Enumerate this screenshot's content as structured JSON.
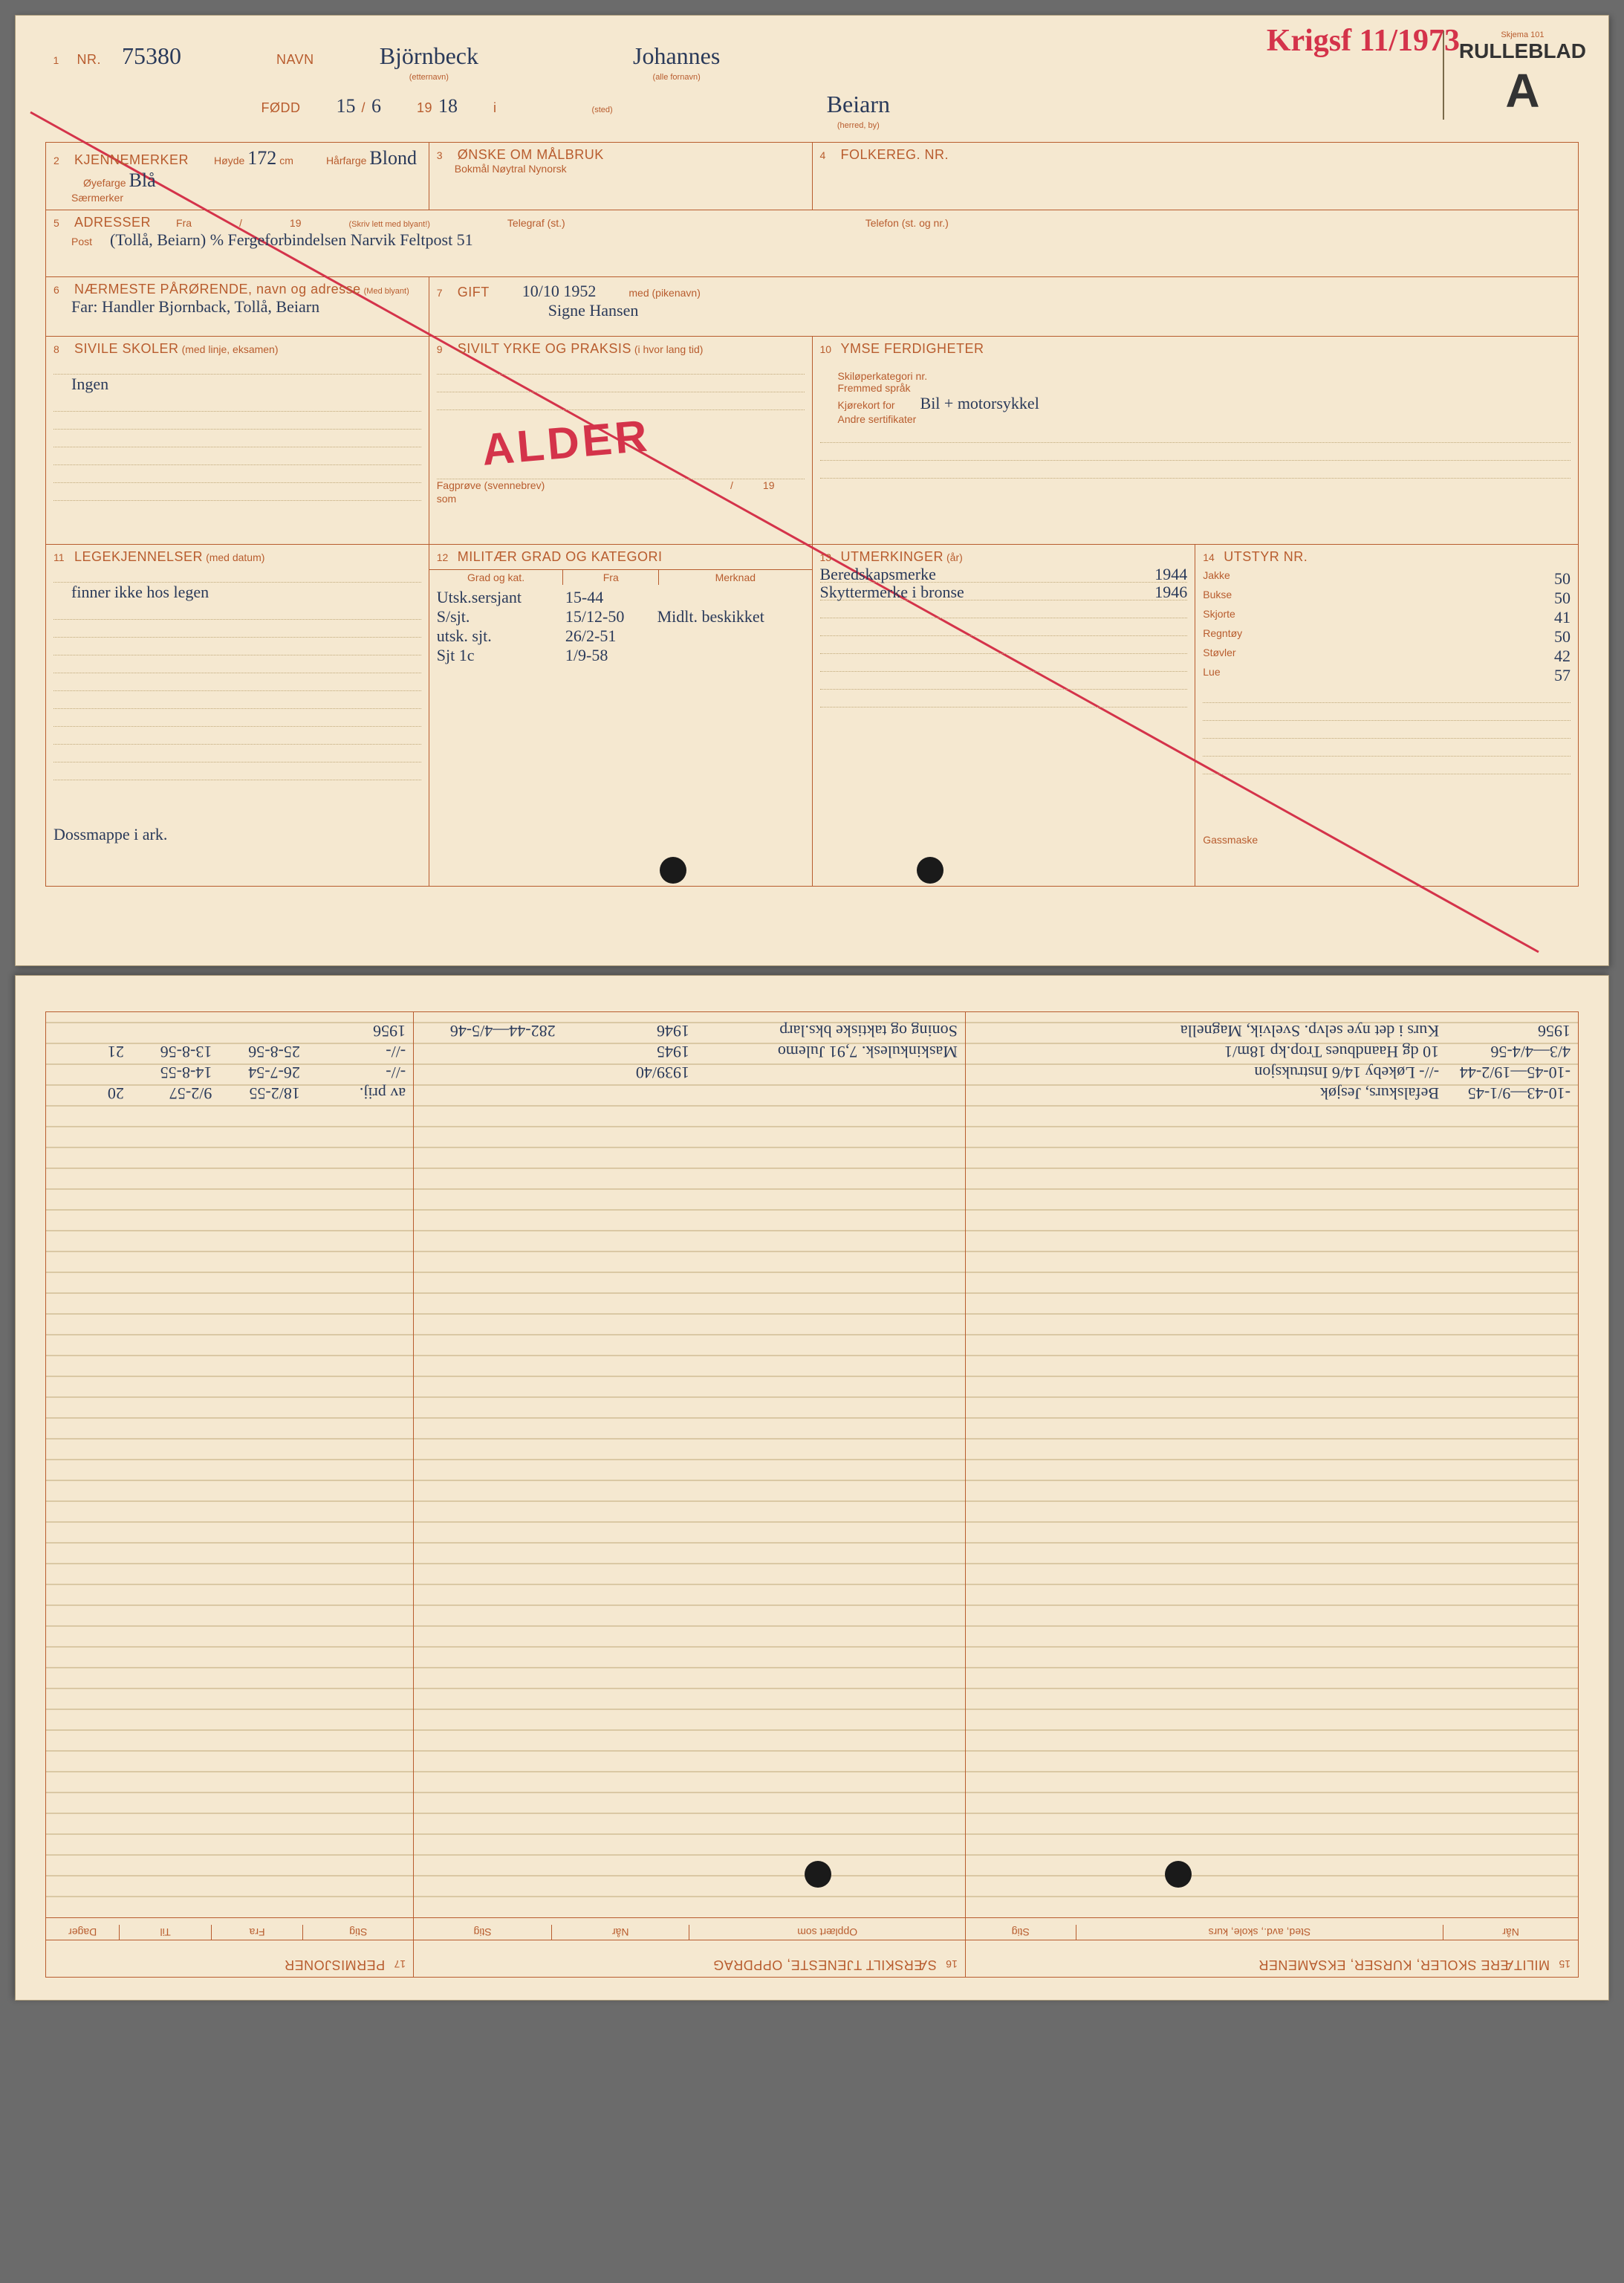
{
  "colors": {
    "paper": "#f5e8d0",
    "ink_printed": "#b85c2e",
    "ink_hand": "#2a3a5a",
    "ink_red": "#d4334a",
    "border": "#b85c2e",
    "background": "#6b6b6b"
  },
  "header": {
    "skjema": "Skjema 101",
    "rulleblad": "RULLEBLAD",
    "letter": "A",
    "red_stamp": "Krigsf 11/1973"
  },
  "section1": {
    "num": "1",
    "nr_label": "NR.",
    "nr_value": "75380",
    "navn_label": "NAVN",
    "etternavn": "Björnbeck",
    "etternavn_sub": "(etternavn)",
    "fornavn": "Johannes",
    "fornavn_sub": "(alle fornavn)",
    "fodd_label": "FØDD",
    "fodd_day": "15",
    "fodd_month": "6",
    "fodd_year_prefix": "19",
    "fodd_year": "18",
    "i_label": "i",
    "sted_sub": "(sted)",
    "herred": "Beiarn",
    "herred_sub": "(herred, by)"
  },
  "section2": {
    "num": "2",
    "label": "KJENNEMERKER",
    "hoyde_label": "Høyde",
    "hoyde_value": "172",
    "cm": "cm",
    "harfarge_label": "Hårfarge",
    "harfarge_value": "Blond",
    "oyefarge_label": "Øyefarge",
    "oyefarge_value": "Blå",
    "saermerker": "Særmerker"
  },
  "section3": {
    "num": "3",
    "label": "ØNSKE OM MÅLBRUK",
    "options": "Bokmål   Nøytral   Nynorsk"
  },
  "section4": {
    "num": "4",
    "label": "FOLKEREG. NR."
  },
  "section5": {
    "num": "5",
    "label": "ADRESSER",
    "fra": "Fra",
    "slash": "/",
    "year_prefix": "19",
    "skriv": "(Skriv lett med blyant!)",
    "telegraf": "Telegraf (st.)",
    "telefon": "Telefon (st. og nr.)",
    "post": "Post",
    "value": "(Tollå, Beiarn) % Fergeforbindelsen Narvik    Feltpost 51"
  },
  "section6": {
    "num": "6",
    "label": "NÆRMESTE PÅRØRENDE, navn og adresse",
    "med_blyant": "(Med blyant)",
    "value": "Far: Handler Bjornback, Tollå, Beiarn"
  },
  "section7": {
    "num": "7",
    "label": "GIFT",
    "date": "10/10   1952",
    "med": "med (pikenavn)",
    "value": "Signe Hansen"
  },
  "section8": {
    "num": "8",
    "label": "SIVILE SKOLER",
    "sub": "(med linje, eksamen)",
    "value": "Ingen"
  },
  "section9": {
    "num": "9",
    "label": "SIVILT YRKE OG PRAKSIS",
    "sub": "(i hvor lang tid)",
    "fagprove": "Fagprøve (svennebrev)",
    "som": "som",
    "year_prefix": "19",
    "stamp": "ALDER"
  },
  "section10": {
    "num": "10",
    "label": "YMSE FERDIGHETER",
    "ski": "Skiløperkategori nr.",
    "fremmed": "Fremmed språk",
    "kjorekort": "Kjørekort for",
    "kjorekort_value": "Bil + motorsykkel",
    "andre": "Andre sertifikater"
  },
  "section11": {
    "num": "11",
    "label": "LEGEKJENNELSER",
    "sub": "(med datum)",
    "value": "finner ikke hos legen",
    "bottom_note": "Dossmappe i ark."
  },
  "section12": {
    "num": "12",
    "label": "MILITÆR GRAD OG KATEGORI",
    "headers": [
      "Grad og kat.",
      "Fra",
      "Merknad"
    ],
    "rows": [
      [
        "Utsk.sersjant",
        "15-44",
        ""
      ],
      [
        "S/sjt.",
        "15/12-50",
        "Midlt. beskikket"
      ],
      [
        "utsk. sjt.",
        "26/2-51",
        ""
      ],
      [
        "Sjt 1c",
        "1/9-58",
        ""
      ]
    ]
  },
  "section13": {
    "num": "13",
    "label": "UTMERKINGER",
    "sub": "(år)",
    "rows": [
      [
        "Beredskapsmerke",
        "1944"
      ],
      [
        "Skyttermerke i bronse",
        "1946"
      ]
    ]
  },
  "section14": {
    "num": "14",
    "label": "UTSTYR NR.",
    "rows": [
      [
        "Jakke",
        "50"
      ],
      [
        "Bukse",
        "50"
      ],
      [
        "Skjorte",
        "41"
      ],
      [
        "Regntøy",
        "50"
      ],
      [
        "Støvler",
        "42"
      ],
      [
        "Lue",
        "57"
      ]
    ],
    "gassmaske": "Gassmaske"
  },
  "bottom_card": {
    "section15": {
      "num": "15",
      "label": "MILITÆRE SKOLER, KURSER, EKSAMENER",
      "headers": [
        "Når",
        "Sted, avd., skole, kurs",
        "Stig"
      ],
      "rows": [
        [
          "-10-43—9/1-45",
          "Befalskurs, Jesjøk",
          ""
        ],
        [
          "-10-45—19/2-44",
          "  -//-  Løkeby 14/6 Instruksjon",
          ""
        ],
        [
          "4/3—4/4-56",
          "10 dg Haandbues Trop.kp 18m/1",
          ""
        ],
        [
          "1956",
          "Kurs i det nye selvp. Svelvik, Magnella",
          ""
        ]
      ]
    },
    "section16": {
      "num": "16",
      "label": "SÆRSKILT TJENESTE, OPPDRAG",
      "headers": [
        "Opplært som",
        "Når",
        "Stig"
      ],
      "rows": [
        [
          "",
          "1939/40",
          ""
        ],
        [
          "Maskinkulesk. 7,91 Julemo",
          "1945",
          ""
        ],
        [
          "Soning og taktiske bks.larp",
          "1946",
          "282-44—4/5-46"
        ]
      ]
    },
    "section17": {
      "num": "17",
      "label": "PERMISJONER",
      "headers": [
        "Stig",
        "Fra",
        "Til",
        "Dager"
      ],
      "rows": [
        [
          "av prij.",
          "18/2-55",
          "9/2-57",
          "20"
        ],
        [
          "  -//-  ",
          "26-7-54",
          "14-8-55",
          ""
        ],
        [
          "  -//-  ",
          "25-8-56",
          "13-8-56",
          "21"
        ],
        [
          "1956",
          "",
          "",
          ""
        ]
      ]
    }
  }
}
